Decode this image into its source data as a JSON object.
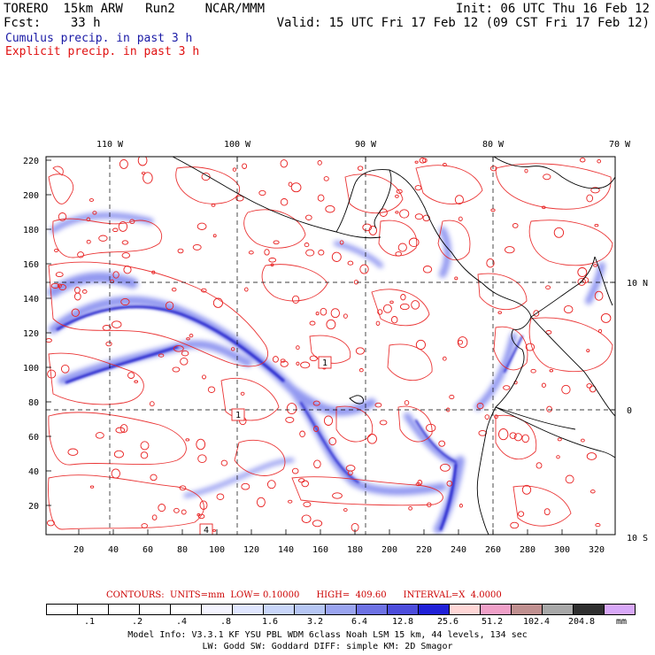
{
  "header": {
    "line1_left": "TORERO  15km ARW   Run2    NCAR/MMM",
    "line1_right": "Init: 06 UTC Thu 16 Feb 12",
    "line2_left": "Fcst:    33 h",
    "line2_right": "Valid: 15 UTC Fri 17 Feb 12 (09 CST Fri 17 Feb 12)",
    "cumulus": "Cumulus precip. in past 3 h",
    "explicit": "Explicit precip. in past 3 h"
  },
  "map": {
    "top_lon_labels": [
      "110 W",
      "100 W",
      "90 W",
      "80 W",
      "70 W"
    ],
    "right_lat_labels": [
      "10 N",
      "0",
      "10 S"
    ],
    "y_ticks": [
      "220",
      "200",
      "180",
      "160",
      "140",
      "120",
      "100",
      "80",
      "60",
      "40",
      "20"
    ],
    "x_ticks": [
      "20",
      "40",
      "60",
      "80",
      "100",
      "120",
      "140",
      "160",
      "180",
      "200",
      "220",
      "240",
      "260",
      "280",
      "300",
      "320"
    ],
    "box_labels": [
      "1",
      "1",
      "4"
    ],
    "colors": {
      "explicit": "#e82020",
      "cumulus": "#4040d8",
      "coast": "#000000"
    }
  },
  "contours": {
    "text": "CONTOURS:  UNITS=mm  LOW= 0.10000      HIGH=  409.60      INTERVAL=X  4.0000"
  },
  "colorbar": {
    "colors": [
      "#ffffff",
      "#f4f4ff",
      "#e0e6ff",
      "#c9d6fa",
      "#b6c6f4",
      "#9aa4f0",
      "#6e72e4",
      "#4d4ddc",
      "#2020d8",
      "#ffd6d6",
      "#f0a0c8",
      "#c09090",
      "#a8a8a8",
      "#303030",
      "#d8a8f8"
    ],
    "labels": [
      ".1",
      ".2",
      ".4",
      ".8",
      "1.6",
      "3.2",
      "6.4",
      "12.8",
      "25.6",
      "51.2",
      "102.4",
      "204.8"
    ],
    "unit": "mm"
  },
  "footer": {
    "line1": "Model Info: V3.3.1   KF     YSU PBL   WDM 6class  Noah LSM  15 km,   44 levels,  134 sec",
    "line2": "LW: Godd SW: Goddard DIFF: simple KM: 2D Smagor"
  }
}
